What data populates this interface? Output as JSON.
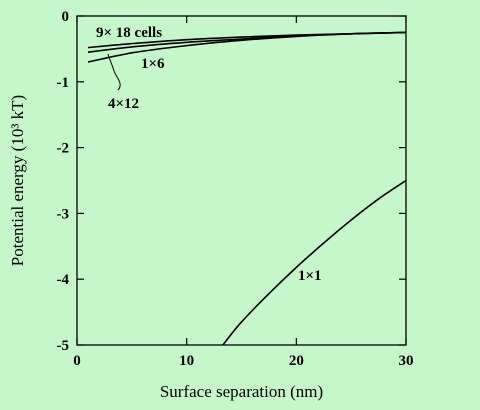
{
  "chart_data": {
    "type": "line",
    "title": "",
    "xlabel": "Surface separation (nm)",
    "ylabel": "Potential energy (10³ kT)",
    "xlim": [
      0,
      30
    ],
    "ylim": [
      -5,
      0
    ],
    "xticks": [
      0,
      10,
      20,
      30
    ],
    "yticks": [
      0,
      -1,
      -2,
      -3,
      -4,
      -5
    ],
    "grid": false,
    "legend": "none",
    "annotations": [
      "9× 18 cells",
      "1×6",
      "4×12",
      "1×1"
    ],
    "series": [
      {
        "x": [
          1,
          5,
          10,
          15,
          20,
          25,
          30
        ],
        "y": [
          -0.48,
          -0.42,
          -0.36,
          -0.32,
          -0.29,
          -0.27,
          -0.25
        ]
      },
      {
        "x": [
          1,
          5,
          10,
          15,
          20,
          25,
          30
        ],
        "y": [
          -0.55,
          -0.47,
          -0.4,
          -0.35,
          -0.3,
          -0.27,
          -0.25
        ]
      },
      {
        "x": [
          1,
          5,
          10,
          15,
          20,
          25,
          30
        ],
        "y": [
          -0.7,
          -0.56,
          -0.45,
          -0.37,
          -0.31,
          -0.27,
          -0.25
        ]
      },
      {
        "x": [
          13.3,
          15,
          17.5,
          20,
          22.5,
          25,
          27.5,
          30
        ],
        "y": [
          -5.0,
          -4.65,
          -4.22,
          -3.82,
          -3.45,
          -3.1,
          -2.78,
          -2.5
        ]
      }
    ]
  }
}
